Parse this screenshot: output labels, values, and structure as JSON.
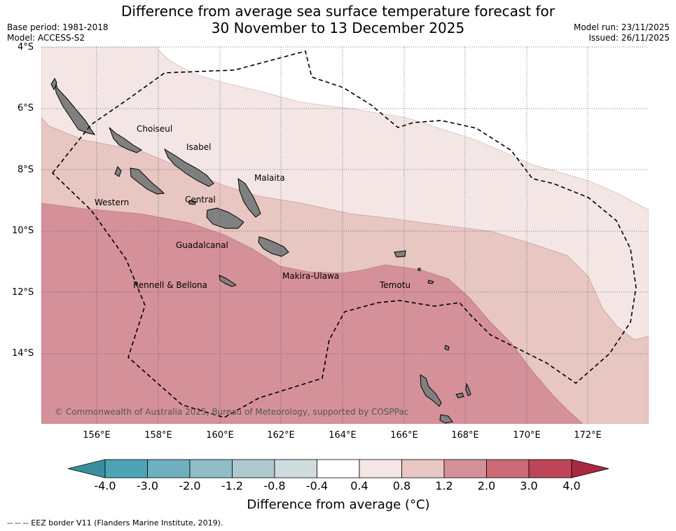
{
  "header": {
    "title_line1": "Difference from average sea surface temperature forecast for",
    "title_line2": "30 November to 13 December 2025",
    "base_period": "Base period: 1981-2018",
    "model": "Model: ACCESS-S2",
    "model_run": "Model run: 23/11/2025",
    "issued": "Issued: 26/11/2025"
  },
  "map": {
    "lat_labels": [
      "4°S",
      "6°S",
      "8°S",
      "10°S",
      "12°S",
      "14°S"
    ],
    "lon_labels": [
      "156°E",
      "158°E",
      "160°E",
      "162°E",
      "164°E",
      "166°E",
      "168°E",
      "170°E",
      "172°E"
    ],
    "provinces": {
      "choiseul": "Choiseul",
      "isabel": "Isabel",
      "malaita": "Malaita",
      "western": "Western",
      "central": "Central",
      "guadalcanal": "Guadalcanal",
      "makira": "Makira-Ulawa",
      "rennell": "Rennell & Bellona",
      "temotu": "Temotu"
    },
    "credit": "© Commonwealth of Australia 2025, Bureau of Meteorology, supported by COSPPac"
  },
  "colorbar": {
    "levels": [
      "-4.0",
      "-3.0",
      "-2.0",
      "-1.2",
      "-0.8",
      "-0.4",
      "0.4",
      "0.8",
      "1.2",
      "2.0",
      "3.0",
      "4.0"
    ],
    "colors": {
      "lt_-3": "#3a8f9e",
      "-3_-2": "#4ea3b4",
      "-2_-1.2": "#6eb0c0",
      "-1.2_-0.8": "#8fbcc6",
      "-0.8_-0.4": "#adc9ce",
      "-0.4_0.4": "#cfdcde",
      "0.4_0.8": "#ffffff",
      "0.8_1.2": "#f5e6e6",
      "1.2_2.0": "#e8c6c2",
      "2.0_3.0": "#d5919a",
      "3.0_4.0": "#cc6a78",
      "gt_4": "#bd4558",
      "extend_high": "#a82a42"
    },
    "title": "Difference from average (°C)"
  },
  "footer": {
    "eez_note": "--  --  -- EEZ border V11 (Flanders Marine Institute, 2019)."
  }
}
